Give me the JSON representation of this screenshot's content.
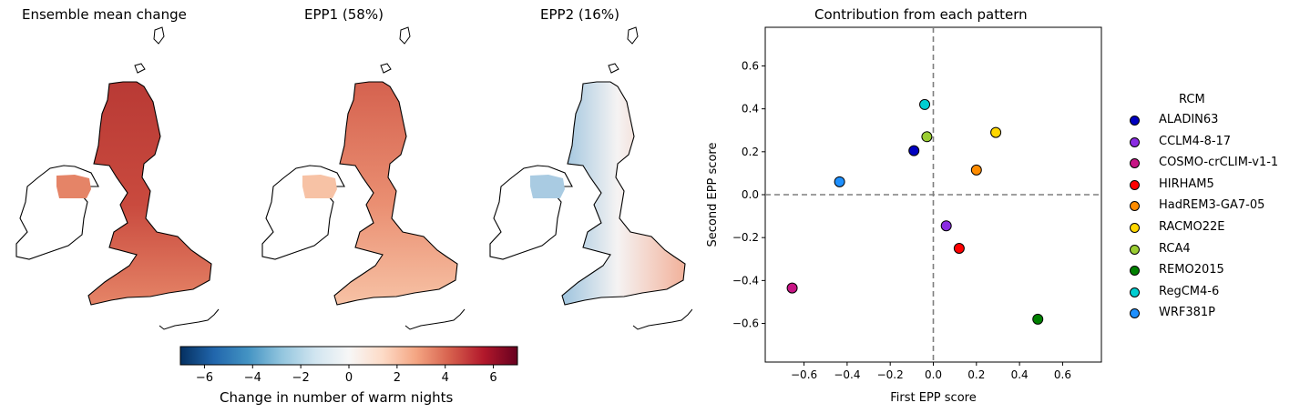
{
  "maps": [
    {
      "title": "Ensemble mean change",
      "style": "warm"
    },
    {
      "title": "EPP1 (58%)",
      "style": "mid"
    },
    {
      "title": "EPP2 (16%)",
      "style": "diverging"
    }
  ],
  "colorbar": {
    "label": "Change in number of warm nights",
    "range": [
      -7,
      7
    ],
    "ticks": [
      -6,
      -4,
      -2,
      0,
      2,
      4,
      6
    ],
    "tick_labels": [
      "−6",
      "−4",
      "−2",
      "0",
      "2",
      "4",
      "6"
    ],
    "colormap": "RdBu_r"
  },
  "chart_data": {
    "type": "scatter",
    "title": "Contribution from each pattern",
    "xlabel": "First EPP score",
    "ylabel": "Second EPP score",
    "xlim": [
      -0.78,
      0.78
    ],
    "ylim": [
      -0.78,
      0.78
    ],
    "xticks": [
      -0.6,
      -0.4,
      -0.2,
      0.0,
      0.2,
      0.4,
      0.6
    ],
    "xtick_labels": [
      "−0.6",
      "−0.4",
      "−0.2",
      "0.0",
      "0.2",
      "0.4",
      "0.6"
    ],
    "yticks": [
      -0.6,
      -0.4,
      -0.2,
      0.0,
      0.2,
      0.4,
      0.6
    ],
    "ytick_labels": [
      "−0.6",
      "−0.4",
      "−0.2",
      "0.0",
      "0.2",
      "0.4",
      "0.6"
    ],
    "reference_lines": {
      "x": 0,
      "y": 0,
      "style": "dashed"
    },
    "legend_title": "RCM",
    "legend_position": "right",
    "series": [
      {
        "name": "ALADIN63",
        "x": -0.09,
        "y": 0.205,
        "color": "#0000c0"
      },
      {
        "name": "CCLM4-8-17",
        "x": 0.06,
        "y": -0.145,
        "color": "#8a2be2"
      },
      {
        "name": "COSMO-crCLIM-v1-1",
        "x": -0.655,
        "y": -0.435,
        "color": "#c71585"
      },
      {
        "name": "HIRHAM5",
        "x": 0.12,
        "y": -0.25,
        "color": "#ff0000"
      },
      {
        "name": "HadREM3-GA7-05",
        "x": 0.2,
        "y": 0.115,
        "color": "#ff8c00"
      },
      {
        "name": "RACMO22E",
        "x": 0.29,
        "y": 0.29,
        "color": "#ffd700"
      },
      {
        "name": "RCA4",
        "x": -0.03,
        "y": 0.27,
        "color": "#9acd32"
      },
      {
        "name": "REMO2015",
        "x": 0.485,
        "y": -0.58,
        "color": "#008000"
      },
      {
        "name": "RegCM4-6",
        "x": -0.04,
        "y": 0.42,
        "color": "#00ced1"
      },
      {
        "name": "WRF381P",
        "x": -0.435,
        "y": 0.06,
        "color": "#1e90ff"
      }
    ]
  }
}
